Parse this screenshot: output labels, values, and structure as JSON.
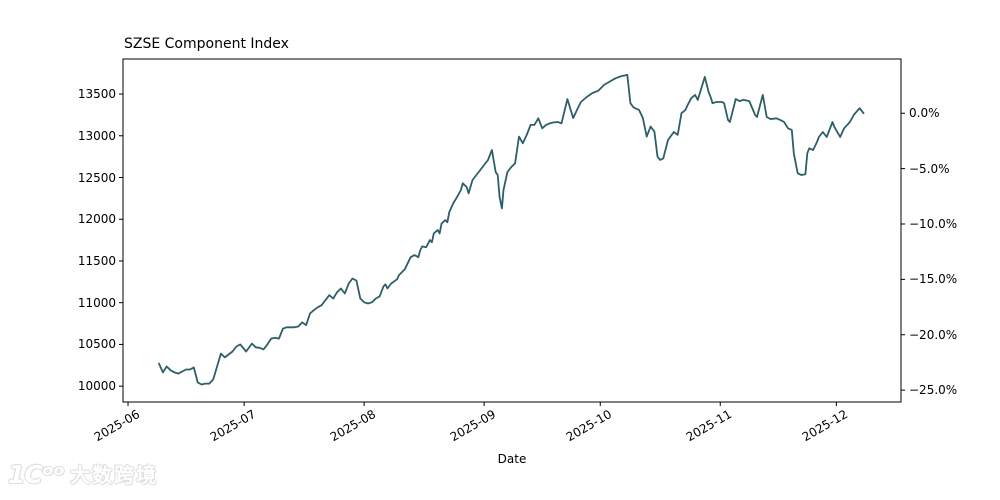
{
  "figure": {
    "background": "#ffffff"
  },
  "watermark": {
    "logo": "1Cᵒᵒ",
    "text": "大数跨境"
  },
  "chart_data": {
    "type": "line",
    "title": "SZSE Component Index",
    "xlabel": "Date",
    "ylabel": "",
    "grid": false,
    "legend": null,
    "line_color": "#2d5f69",
    "axis_color": "#000000",
    "x_tick_labels": [
      "2025-06",
      "2025-07",
      "2025-08",
      "2025-09",
      "2025-10",
      "2025-11",
      "2025-12"
    ],
    "x_tick_day_offsets": [
      0,
      30,
      61,
      92,
      122,
      153,
      183
    ],
    "xlim_days": [
      -1.3,
      199.7
    ],
    "y_ticks": [
      13500,
      13000,
      12500,
      12000,
      11500,
      11000,
      10500,
      10000
    ],
    "ylim": [
      9810,
      13920
    ],
    "right_axis": {
      "base_value": 13270,
      "tick_percents": [
        0,
        -5,
        -10,
        -15,
        -20,
        -25
      ],
      "tick_labels": [
        "0.0%",
        "−5.0%",
        "−10.0%",
        "−15.0%",
        "−20.0%",
        "−25.0%"
      ]
    },
    "series": [
      {
        "name": "SZSE Component Index",
        "x_days_from_2025_06_01": [
          8,
          9,
          10,
          11,
          12,
          13,
          14,
          15,
          16,
          17,
          18,
          19,
          20,
          21,
          22,
          24,
          25,
          26,
          27,
          28,
          29,
          30.5,
          32,
          33,
          34,
          35,
          36,
          37,
          38,
          39,
          40,
          41,
          43,
          44,
          45,
          46,
          47,
          48,
          49,
          50,
          51,
          52,
          53,
          54,
          55,
          56,
          57,
          58,
          59,
          60,
          61,
          62,
          63,
          64,
          65,
          66,
          66.5,
          67,
          68,
          69.5,
          70,
          71.5,
          73,
          74,
          75,
          75.5,
          76,
          77,
          78,
          78.5,
          79,
          80,
          80.5,
          81,
          82,
          82.5,
          83,
          84,
          85,
          86,
          86.5,
          87.5,
          88,
          89,
          90,
          91,
          92,
          93,
          93.5,
          94,
          95,
          95.5,
          96,
          96.6,
          97,
          98,
          99,
          100,
          101,
          102,
          103,
          104,
          105,
          106,
          107,
          108,
          109,
          110,
          111,
          112,
          113.5,
          115,
          116,
          117,
          118.5,
          120,
          121.5,
          123,
          124.5,
          126,
          127.5,
          129,
          129.8,
          130.5,
          131,
          132,
          133,
          134,
          135,
          136,
          136.8,
          137.5,
          138.3,
          139.5,
          141,
          142,
          143,
          144,
          144.6,
          145.5,
          146.5,
          147.2,
          149,
          150,
          150.5,
          151,
          152,
          153.5,
          154,
          155,
          155.5,
          157,
          158,
          159,
          160.5,
          162,
          162.5,
          164,
          165,
          166,
          167.5,
          168.5,
          169.5,
          170.5,
          171.5,
          172,
          173,
          174,
          175,
          175.5,
          176,
          177,
          178,
          178.5,
          179.5,
          180.5,
          182,
          182.5,
          184,
          185,
          186.5,
          187.5,
          189,
          190
        ],
        "values": [
          10270,
          10165,
          10235,
          10190,
          10165,
          10150,
          10175,
          10200,
          10200,
          10225,
          10045,
          10020,
          10030,
          10030,
          10080,
          10390,
          10345,
          10380,
          10415,
          10475,
          10500,
          10415,
          10510,
          10465,
          10460,
          10440,
          10500,
          10570,
          10580,
          10570,
          10690,
          10705,
          10705,
          10715,
          10765,
          10730,
          10870,
          10910,
          10945,
          10970,
          11030,
          11090,
          11050,
          11125,
          11170,
          11110,
          11230,
          11290,
          11265,
          11050,
          11005,
          10990,
          11005,
          11050,
          11075,
          11195,
          11220,
          11170,
          11230,
          11280,
          11330,
          11400,
          11545,
          11570,
          11545,
          11630,
          11675,
          11665,
          11750,
          11725,
          11830,
          11870,
          11830,
          11950,
          11990,
          11965,
          12085,
          12190,
          12265,
          12350,
          12430,
          12385,
          12310,
          12470,
          12530,
          12590,
          12650,
          12710,
          12770,
          12830,
          12565,
          12530,
          12265,
          12130,
          12350,
          12565,
          12625,
          12670,
          12990,
          12910,
          13010,
          13130,
          13130,
          13210,
          13090,
          13130,
          13150,
          13160,
          13165,
          13150,
          13440,
          13212,
          13310,
          13405,
          13465,
          13512,
          13540,
          13610,
          13650,
          13690,
          13715,
          13730,
          13390,
          13345,
          13330,
          13310,
          13215,
          12990,
          13110,
          13050,
          12750,
          12710,
          12730,
          12950,
          13045,
          13010,
          13270,
          13310,
          13370,
          13450,
          13490,
          13430,
          13705,
          13525,
          13465,
          13390,
          13405,
          13405,
          13390,
          13190,
          13165,
          13440,
          13415,
          13430,
          13415,
          13250,
          13225,
          13490,
          13225,
          13200,
          13210,
          13190,
          13165,
          13090,
          13070,
          12790,
          12550,
          12530,
          12540,
          12790,
          12850,
          12830,
          12925,
          12985,
          13045,
          12985,
          13165,
          13105,
          12985,
          13090,
          13165,
          13250,
          13330,
          13270
        ]
      }
    ]
  }
}
